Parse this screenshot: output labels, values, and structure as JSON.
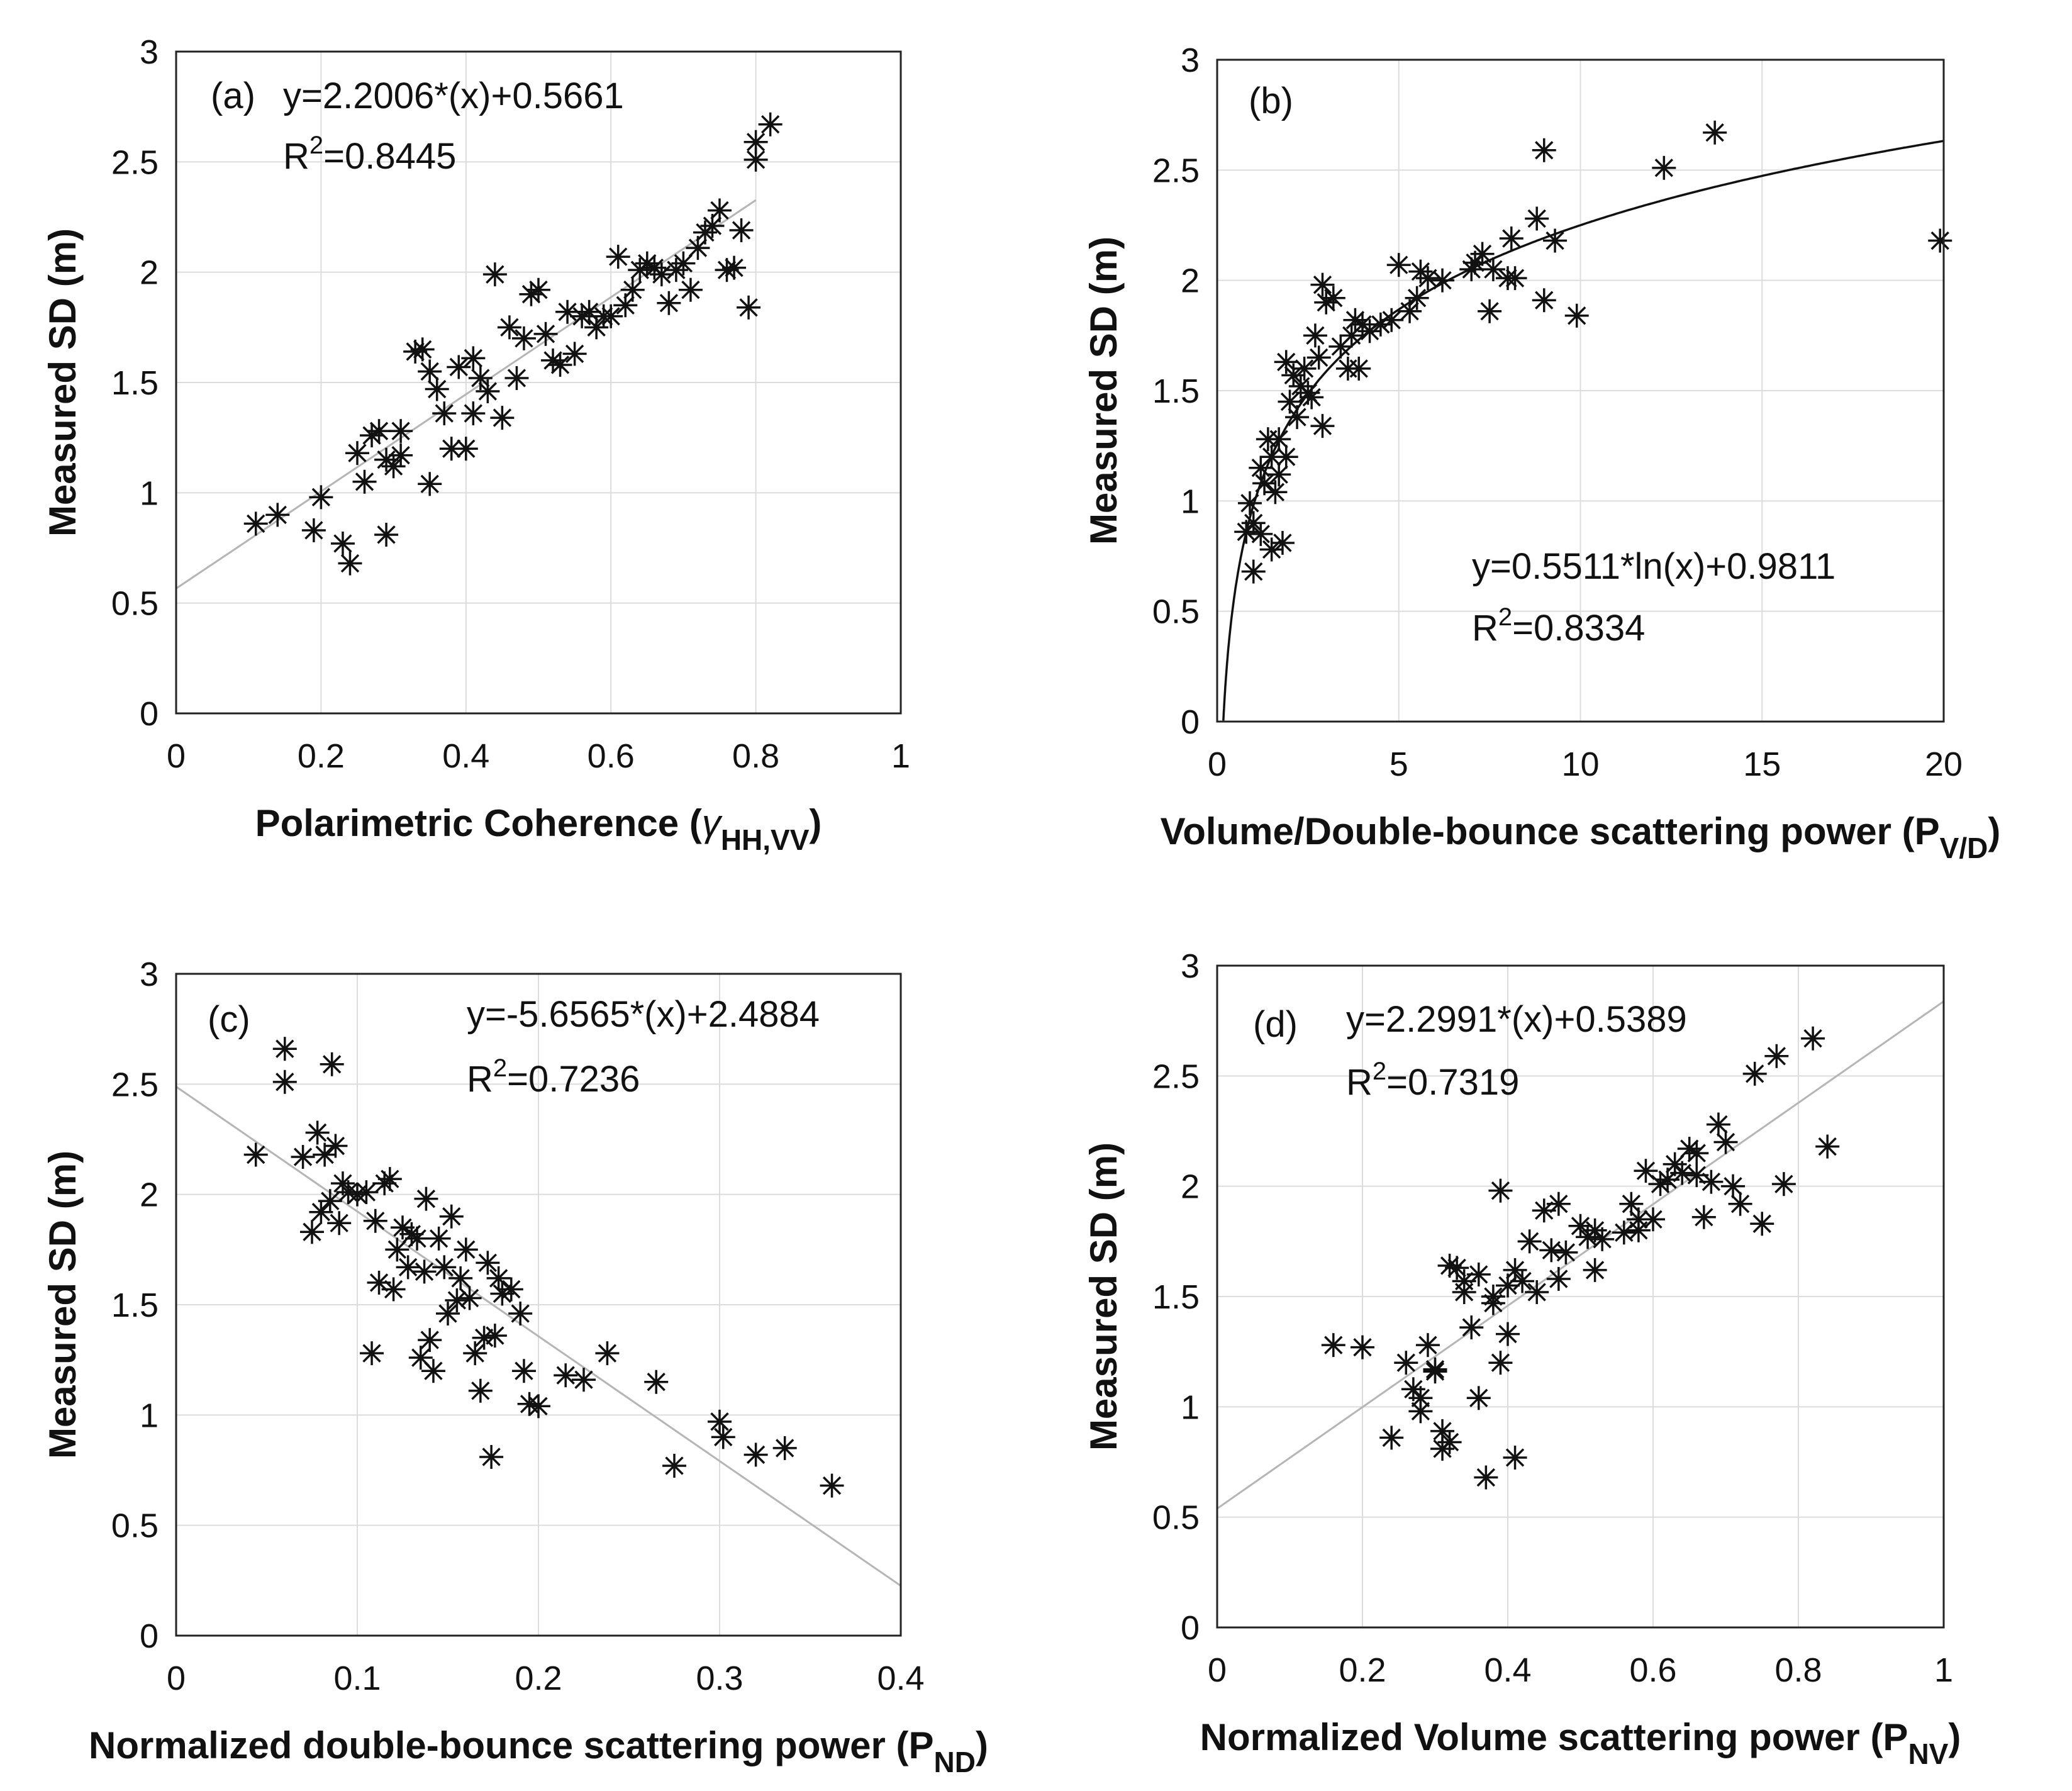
{
  "chart_data": [
    {
      "type": "scatter",
      "panel": "(a)",
      "xlabel": "Polarimetric Coherence (",
      "xlabel_symbol": "γ",
      "xlabel_sub": "HH,VV",
      "xlabel_close": ")",
      "ylabel": "Measured SD (m)",
      "xlim": [
        0,
        1
      ],
      "ylim": [
        0,
        3
      ],
      "xticks": [
        "0",
        "0.2",
        "0.4",
        "0.6",
        "0.8",
        "1"
      ],
      "yticks": [
        "0",
        "0.5",
        "1",
        "1.5",
        "2",
        "2.5",
        "3"
      ],
      "grid": true,
      "equation": "y=2.2006*(x)+0.5661",
      "r2_prefix": "R",
      "r2_sup": "2",
      "r2_value": "=0.8445",
      "fit": {
        "kind": "linear",
        "slope": 2.2006,
        "intercept": 0.5661,
        "x_range": [
          0,
          0.8
        ]
      },
      "points": [
        [
          0.11,
          0.86
        ],
        [
          0.14,
          0.9
        ],
        [
          0.19,
          0.83
        ],
        [
          0.2,
          0.98
        ],
        [
          0.23,
          0.77
        ],
        [
          0.24,
          0.68
        ],
        [
          0.25,
          1.18
        ],
        [
          0.26,
          1.05
        ],
        [
          0.27,
          1.26
        ],
        [
          0.28,
          1.28
        ],
        [
          0.29,
          0.81
        ],
        [
          0.29,
          1.15
        ],
        [
          0.3,
          1.12
        ],
        [
          0.31,
          1.28
        ],
        [
          0.31,
          1.17
        ],
        [
          0.33,
          1.64
        ],
        [
          0.34,
          1.65
        ],
        [
          0.35,
          1.55
        ],
        [
          0.35,
          1.04
        ],
        [
          0.36,
          1.47
        ],
        [
          0.37,
          1.36
        ],
        [
          0.38,
          1.2
        ],
        [
          0.39,
          1.57
        ],
        [
          0.4,
          1.2
        ],
        [
          0.41,
          1.36
        ],
        [
          0.41,
          1.61
        ],
        [
          0.42,
          1.52
        ],
        [
          0.43,
          1.46
        ],
        [
          0.44,
          1.99
        ],
        [
          0.45,
          1.34
        ],
        [
          0.46,
          1.75
        ],
        [
          0.47,
          1.52
        ],
        [
          0.48,
          1.7
        ],
        [
          0.49,
          1.9
        ],
        [
          0.5,
          1.92
        ],
        [
          0.51,
          1.72
        ],
        [
          0.52,
          1.6
        ],
        [
          0.53,
          1.58
        ],
        [
          0.54,
          1.82
        ],
        [
          0.55,
          1.63
        ],
        [
          0.56,
          1.8
        ],
        [
          0.57,
          1.82
        ],
        [
          0.58,
          1.75
        ],
        [
          0.59,
          1.8
        ],
        [
          0.6,
          1.8
        ],
        [
          0.61,
          2.07
        ],
        [
          0.62,
          1.85
        ],
        [
          0.63,
          1.92
        ],
        [
          0.64,
          2.01
        ],
        [
          0.65,
          2.04
        ],
        [
          0.66,
          2.02
        ],
        [
          0.67,
          1.99
        ],
        [
          0.68,
          1.86
        ],
        [
          0.69,
          2.01
        ],
        [
          0.7,
          2.04
        ],
        [
          0.71,
          1.92
        ],
        [
          0.72,
          2.11
        ],
        [
          0.73,
          2.18
        ],
        [
          0.74,
          2.21
        ],
        [
          0.75,
          2.28
        ],
        [
          0.76,
          2.01
        ],
        [
          0.77,
          2.02
        ],
        [
          0.78,
          2.19
        ],
        [
          0.79,
          1.84
        ],
        [
          0.8,
          2.59
        ],
        [
          0.8,
          2.51
        ],
        [
          0.82,
          2.67
        ]
      ]
    },
    {
      "type": "scatter",
      "panel": "(b)",
      "xlabel": "Volume/Double-bounce scattering power (P",
      "xlabel_sub": "V/D",
      "xlabel_close": ")",
      "ylabel": "Measured SD (m)",
      "xlim": [
        0,
        20
      ],
      "ylim": [
        0,
        3
      ],
      "xticks": [
        "0",
        "5",
        "10",
        "15",
        "20"
      ],
      "yticks": [
        "0",
        "0.5",
        "1",
        "1.5",
        "2",
        "2.5",
        "3"
      ],
      "grid": true,
      "equation": "y=0.5511*ln(x)+0.9811",
      "r2_prefix": "R",
      "r2_sup": "2",
      "r2_value": "=0.8334",
      "fit": {
        "kind": "log",
        "a": 0.5511,
        "b": 0.9811,
        "x_range": [
          0.17,
          20
        ]
      },
      "points": [
        [
          0.8,
          0.86
        ],
        [
          0.9,
          0.99
        ],
        [
          1.0,
          0.68
        ],
        [
          1.0,
          0.9
        ],
        [
          1.2,
          0.85
        ],
        [
          1.2,
          1.15
        ],
        [
          1.3,
          1.08
        ],
        [
          1.4,
          1.28
        ],
        [
          1.5,
          1.2
        ],
        [
          1.5,
          0.78
        ],
        [
          1.6,
          1.04
        ],
        [
          1.7,
          1.28
        ],
        [
          1.7,
          1.12
        ],
        [
          1.8,
          0.81
        ],
        [
          1.9,
          1.2
        ],
        [
          1.9,
          1.63
        ],
        [
          2.0,
          1.45
        ],
        [
          2.1,
          1.57
        ],
        [
          2.2,
          1.38
        ],
        [
          2.3,
          1.52
        ],
        [
          2.4,
          1.6
        ],
        [
          2.5,
          1.49
        ],
        [
          2.6,
          1.47
        ],
        [
          2.7,
          1.75
        ],
        [
          2.8,
          1.65
        ],
        [
          2.9,
          1.34
        ],
        [
          2.9,
          1.98
        ],
        [
          3.0,
          1.9
        ],
        [
          3.2,
          1.92
        ],
        [
          3.4,
          1.7
        ],
        [
          3.6,
          1.6
        ],
        [
          3.7,
          1.75
        ],
        [
          3.8,
          1.82
        ],
        [
          3.9,
          1.6
        ],
        [
          4.0,
          1.8
        ],
        [
          4.2,
          1.77
        ],
        [
          4.5,
          1.8
        ],
        [
          4.8,
          1.82
        ],
        [
          5.0,
          2.07
        ],
        [
          5.3,
          1.86
        ],
        [
          5.5,
          1.92
        ],
        [
          5.6,
          2.04
        ],
        [
          5.8,
          2.01
        ],
        [
          6.2,
          2.0
        ],
        [
          7.0,
          2.05
        ],
        [
          7.1,
          2.08
        ],
        [
          7.3,
          2.12
        ],
        [
          7.5,
          1.86
        ],
        [
          7.6,
          2.05
        ],
        [
          8.0,
          2.01
        ],
        [
          8.1,
          2.19
        ],
        [
          8.2,
          2.01
        ],
        [
          8.8,
          2.28
        ],
        [
          9.0,
          2.59
        ],
        [
          9.0,
          1.91
        ],
        [
          9.3,
          2.18
        ],
        [
          9.9,
          1.84
        ],
        [
          12.3,
          2.51
        ],
        [
          13.7,
          2.67
        ],
        [
          19.9,
          2.18
        ]
      ]
    },
    {
      "type": "scatter",
      "panel": "(c)",
      "xlabel": "Normalized double-bounce scattering power (P",
      "xlabel_sub": "ND",
      "xlabel_close": ")",
      "ylabel": "Measured SD (m)",
      "xlim": [
        0,
        0.4
      ],
      "ylim": [
        0,
        3
      ],
      "xticks": [
        "0",
        "0.1",
        "0.2",
        "0.3",
        "0.4"
      ],
      "yticks": [
        "0",
        "0.5",
        "1",
        "1.5",
        "2",
        "2.5",
        "3"
      ],
      "grid": true,
      "equation": "y=-5.6565*(x)+2.4884",
      "r2_prefix": "R",
      "r2_sup": "2",
      "r2_value": "=0.7236",
      "fit": {
        "kind": "linear",
        "slope": -5.6565,
        "intercept": 2.4884,
        "x_range": [
          0,
          0.4
        ]
      },
      "points": [
        [
          0.044,
          2.18
        ],
        [
          0.06,
          2.66
        ],
        [
          0.06,
          2.51
        ],
        [
          0.07,
          2.17
        ],
        [
          0.075,
          1.83
        ],
        [
          0.078,
          2.28
        ],
        [
          0.08,
          1.92
        ],
        [
          0.082,
          2.18
        ],
        [
          0.085,
          1.97
        ],
        [
          0.086,
          2.59
        ],
        [
          0.088,
          2.22
        ],
        [
          0.09,
          1.87
        ],
        [
          0.092,
          2.05
        ],
        [
          0.095,
          2.01
        ],
        [
          0.1,
          2.0
        ],
        [
          0.105,
          2.01
        ],
        [
          0.108,
          1.28
        ],
        [
          0.11,
          1.88
        ],
        [
          0.112,
          1.6
        ],
        [
          0.115,
          2.05
        ],
        [
          0.118,
          2.07
        ],
        [
          0.12,
          1.57
        ],
        [
          0.122,
          1.75
        ],
        [
          0.125,
          1.85
        ],
        [
          0.128,
          1.67
        ],
        [
          0.13,
          1.82
        ],
        [
          0.133,
          1.8
        ],
        [
          0.135,
          1.26
        ],
        [
          0.137,
          1.65
        ],
        [
          0.138,
          1.98
        ],
        [
          0.14,
          1.34
        ],
        [
          0.142,
          1.2
        ],
        [
          0.145,
          1.8
        ],
        [
          0.148,
          1.67
        ],
        [
          0.15,
          1.46
        ],
        [
          0.152,
          1.9
        ],
        [
          0.155,
          1.52
        ],
        [
          0.157,
          1.62
        ],
        [
          0.16,
          1.75
        ],
        [
          0.162,
          1.53
        ],
        [
          0.165,
          1.28
        ],
        [
          0.168,
          1.11
        ],
        [
          0.17,
          1.35
        ],
        [
          0.172,
          1.69
        ],
        [
          0.174,
          0.81
        ],
        [
          0.176,
          1.36
        ],
        [
          0.178,
          1.62
        ],
        [
          0.18,
          1.55
        ],
        [
          0.185,
          1.57
        ],
        [
          0.19,
          1.46
        ],
        [
          0.192,
          1.2
        ],
        [
          0.195,
          1.05
        ],
        [
          0.2,
          1.04
        ],
        [
          0.215,
          1.18
        ],
        [
          0.225,
          1.16
        ],
        [
          0.238,
          1.28
        ],
        [
          0.265,
          1.15
        ],
        [
          0.275,
          0.77
        ],
        [
          0.3,
          0.97
        ],
        [
          0.302,
          0.9
        ],
        [
          0.32,
          0.82
        ],
        [
          0.336,
          0.85
        ],
        [
          0.362,
          0.68
        ]
      ]
    },
    {
      "type": "scatter",
      "panel": "(d)",
      "xlabel": "Normalized Volume scattering power (P",
      "xlabel_sub": "NV",
      "xlabel_close": ")",
      "ylabel": "Measured SD (m)",
      "xlim": [
        0,
        1
      ],
      "ylim": [
        0,
        3
      ],
      "xticks": [
        "0",
        "0.2",
        "0.4",
        "0.6",
        "0.8",
        "1"
      ],
      "yticks": [
        "0",
        "0.5",
        "1",
        "1.5",
        "2",
        "2.5",
        "3"
      ],
      "grid": true,
      "equation": "y=2.2991*(x)+0.5389",
      "r2_prefix": "R",
      "r2_sup": "2",
      "r2_value": "=0.7319",
      "fit": {
        "kind": "linear",
        "slope": 2.2991,
        "intercept": 0.5389,
        "x_range": [
          0,
          1
        ]
      },
      "points": [
        [
          0.16,
          1.28
        ],
        [
          0.2,
          1.27
        ],
        [
          0.24,
          0.86
        ],
        [
          0.26,
          1.2
        ],
        [
          0.27,
          1.08
        ],
        [
          0.28,
          1.04
        ],
        [
          0.28,
          0.98
        ],
        [
          0.29,
          1.28
        ],
        [
          0.3,
          1.16
        ],
        [
          0.3,
          1.17
        ],
        [
          0.31,
          0.89
        ],
        [
          0.31,
          0.81
        ],
        [
          0.32,
          1.64
        ],
        [
          0.32,
          0.84
        ],
        [
          0.33,
          1.63
        ],
        [
          0.34,
          1.52
        ],
        [
          0.34,
          1.57
        ],
        [
          0.35,
          1.36
        ],
        [
          0.36,
          1.04
        ],
        [
          0.36,
          1.6
        ],
        [
          0.37,
          0.68
        ],
        [
          0.38,
          1.47
        ],
        [
          0.38,
          1.5
        ],
        [
          0.39,
          1.2
        ],
        [
          0.39,
          1.98
        ],
        [
          0.4,
          1.33
        ],
        [
          0.4,
          1.55
        ],
        [
          0.41,
          1.62
        ],
        [
          0.41,
          0.77
        ],
        [
          0.42,
          1.57
        ],
        [
          0.43,
          1.75
        ],
        [
          0.44,
          1.52
        ],
        [
          0.45,
          1.89
        ],
        [
          0.46,
          1.71
        ],
        [
          0.47,
          1.58
        ],
        [
          0.47,
          1.92
        ],
        [
          0.48,
          1.7
        ],
        [
          0.5,
          1.82
        ],
        [
          0.51,
          1.77
        ],
        [
          0.52,
          1.8
        ],
        [
          0.52,
          1.62
        ],
        [
          0.53,
          1.76
        ],
        [
          0.56,
          1.79
        ],
        [
          0.57,
          1.92
        ],
        [
          0.58,
          1.85
        ],
        [
          0.58,
          1.8
        ],
        [
          0.59,
          2.07
        ],
        [
          0.6,
          1.85
        ],
        [
          0.61,
          2.01
        ],
        [
          0.62,
          2.03
        ],
        [
          0.63,
          2.1
        ],
        [
          0.64,
          2.06
        ],
        [
          0.65,
          2.17
        ],
        [
          0.66,
          2.15
        ],
        [
          0.66,
          2.05
        ],
        [
          0.67,
          1.86
        ],
        [
          0.68,
          2.02
        ],
        [
          0.69,
          2.28
        ],
        [
          0.7,
          2.2
        ],
        [
          0.71,
          2.0
        ],
        [
          0.72,
          1.92
        ],
        [
          0.74,
          2.51
        ],
        [
          0.75,
          1.83
        ],
        [
          0.77,
          2.59
        ],
        [
          0.78,
          2.01
        ],
        [
          0.82,
          2.67
        ],
        [
          0.84,
          2.18
        ]
      ]
    }
  ]
}
